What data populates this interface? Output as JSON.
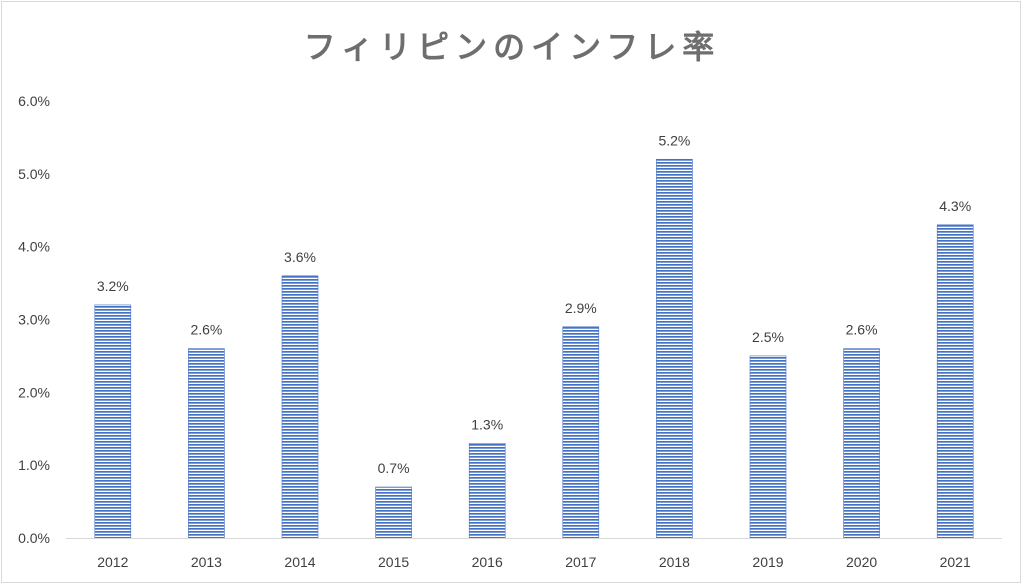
{
  "chart_data": {
    "type": "bar",
    "title": "フィリピンのインフレ率",
    "categories": [
      "2012",
      "2013",
      "2014",
      "2015",
      "2016",
      "2017",
      "2018",
      "2019",
      "2020",
      "2021"
    ],
    "values": [
      3.2,
      2.6,
      3.6,
      0.7,
      1.3,
      2.9,
      5.2,
      2.5,
      2.6,
      4.3
    ],
    "data_labels": [
      "3.2%",
      "2.6%",
      "3.6%",
      "0.7%",
      "1.3%",
      "2.9%",
      "5.2%",
      "2.5%",
      "2.6%",
      "4.3%"
    ],
    "y_ticks": [
      "0.0%",
      "1.0%",
      "2.0%",
      "3.0%",
      "4.0%",
      "5.0%",
      "6.0%"
    ],
    "ylim": [
      0,
      6
    ],
    "y_unit": "%",
    "grid": false,
    "legend": "none",
    "bar_color": "#4472c4",
    "bar_stripe_color": "#ffffff"
  }
}
